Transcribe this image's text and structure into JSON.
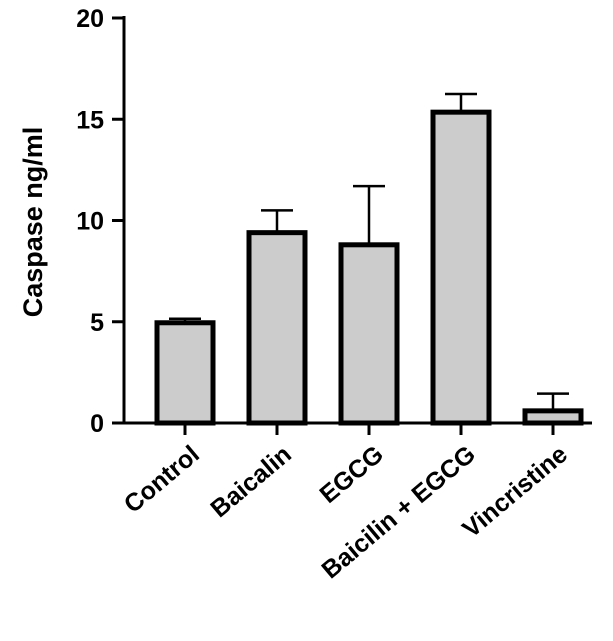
{
  "chart_data": {
    "type": "bar",
    "title": "",
    "xlabel": "",
    "ylabel": "Caspase ng/ml",
    "ylim": [
      0,
      20
    ],
    "yticks": [
      0,
      5,
      10,
      15,
      20
    ],
    "ytick_labels": [
      "0",
      "5",
      "10",
      "15",
      "20"
    ],
    "grid": false,
    "legend": "none",
    "categories": [
      "Control",
      "Baicalin",
      "EGCG",
      "Baicilin + EGCG",
      "Vincristine"
    ],
    "values": [
      4.95,
      9.4,
      8.8,
      15.35,
      0.6
    ],
    "error_upper": [
      0.2,
      1.1,
      2.9,
      0.9,
      0.85
    ],
    "bar_color": "#cccccc",
    "edge_color": "#000000"
  }
}
